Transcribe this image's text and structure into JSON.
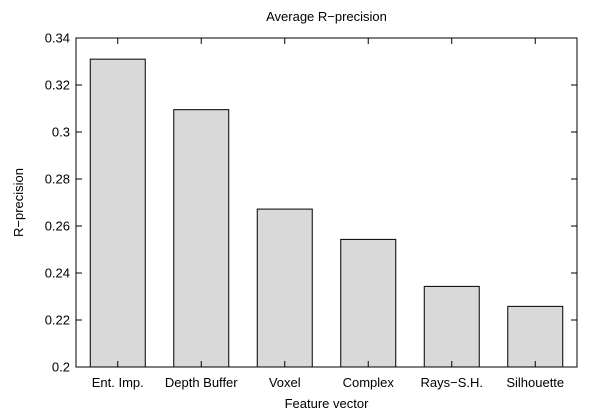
{
  "chart_data": {
    "type": "bar",
    "title": "Average R−precision",
    "xlabel": "Feature vector",
    "ylabel": "R−precision",
    "categories": [
      "Ent. Imp.",
      "Depth Buffer",
      "Voxel",
      "Complex",
      "Rays−S.H.",
      "Silhouette"
    ],
    "values": [
      0.331,
      0.3095,
      0.2672,
      0.2543,
      0.2343,
      0.2258
    ],
    "ylim": [
      0.2,
      0.34
    ],
    "yticks": [
      "0.2",
      "0.22",
      "0.24",
      "0.26",
      "0.28",
      "0.3",
      "0.32",
      "0.34"
    ],
    "grid": false,
    "legend": "none",
    "colors": {
      "bar_fill": "#d9d9d9",
      "bar_stroke": "#000000",
      "axis": "#000000"
    }
  }
}
